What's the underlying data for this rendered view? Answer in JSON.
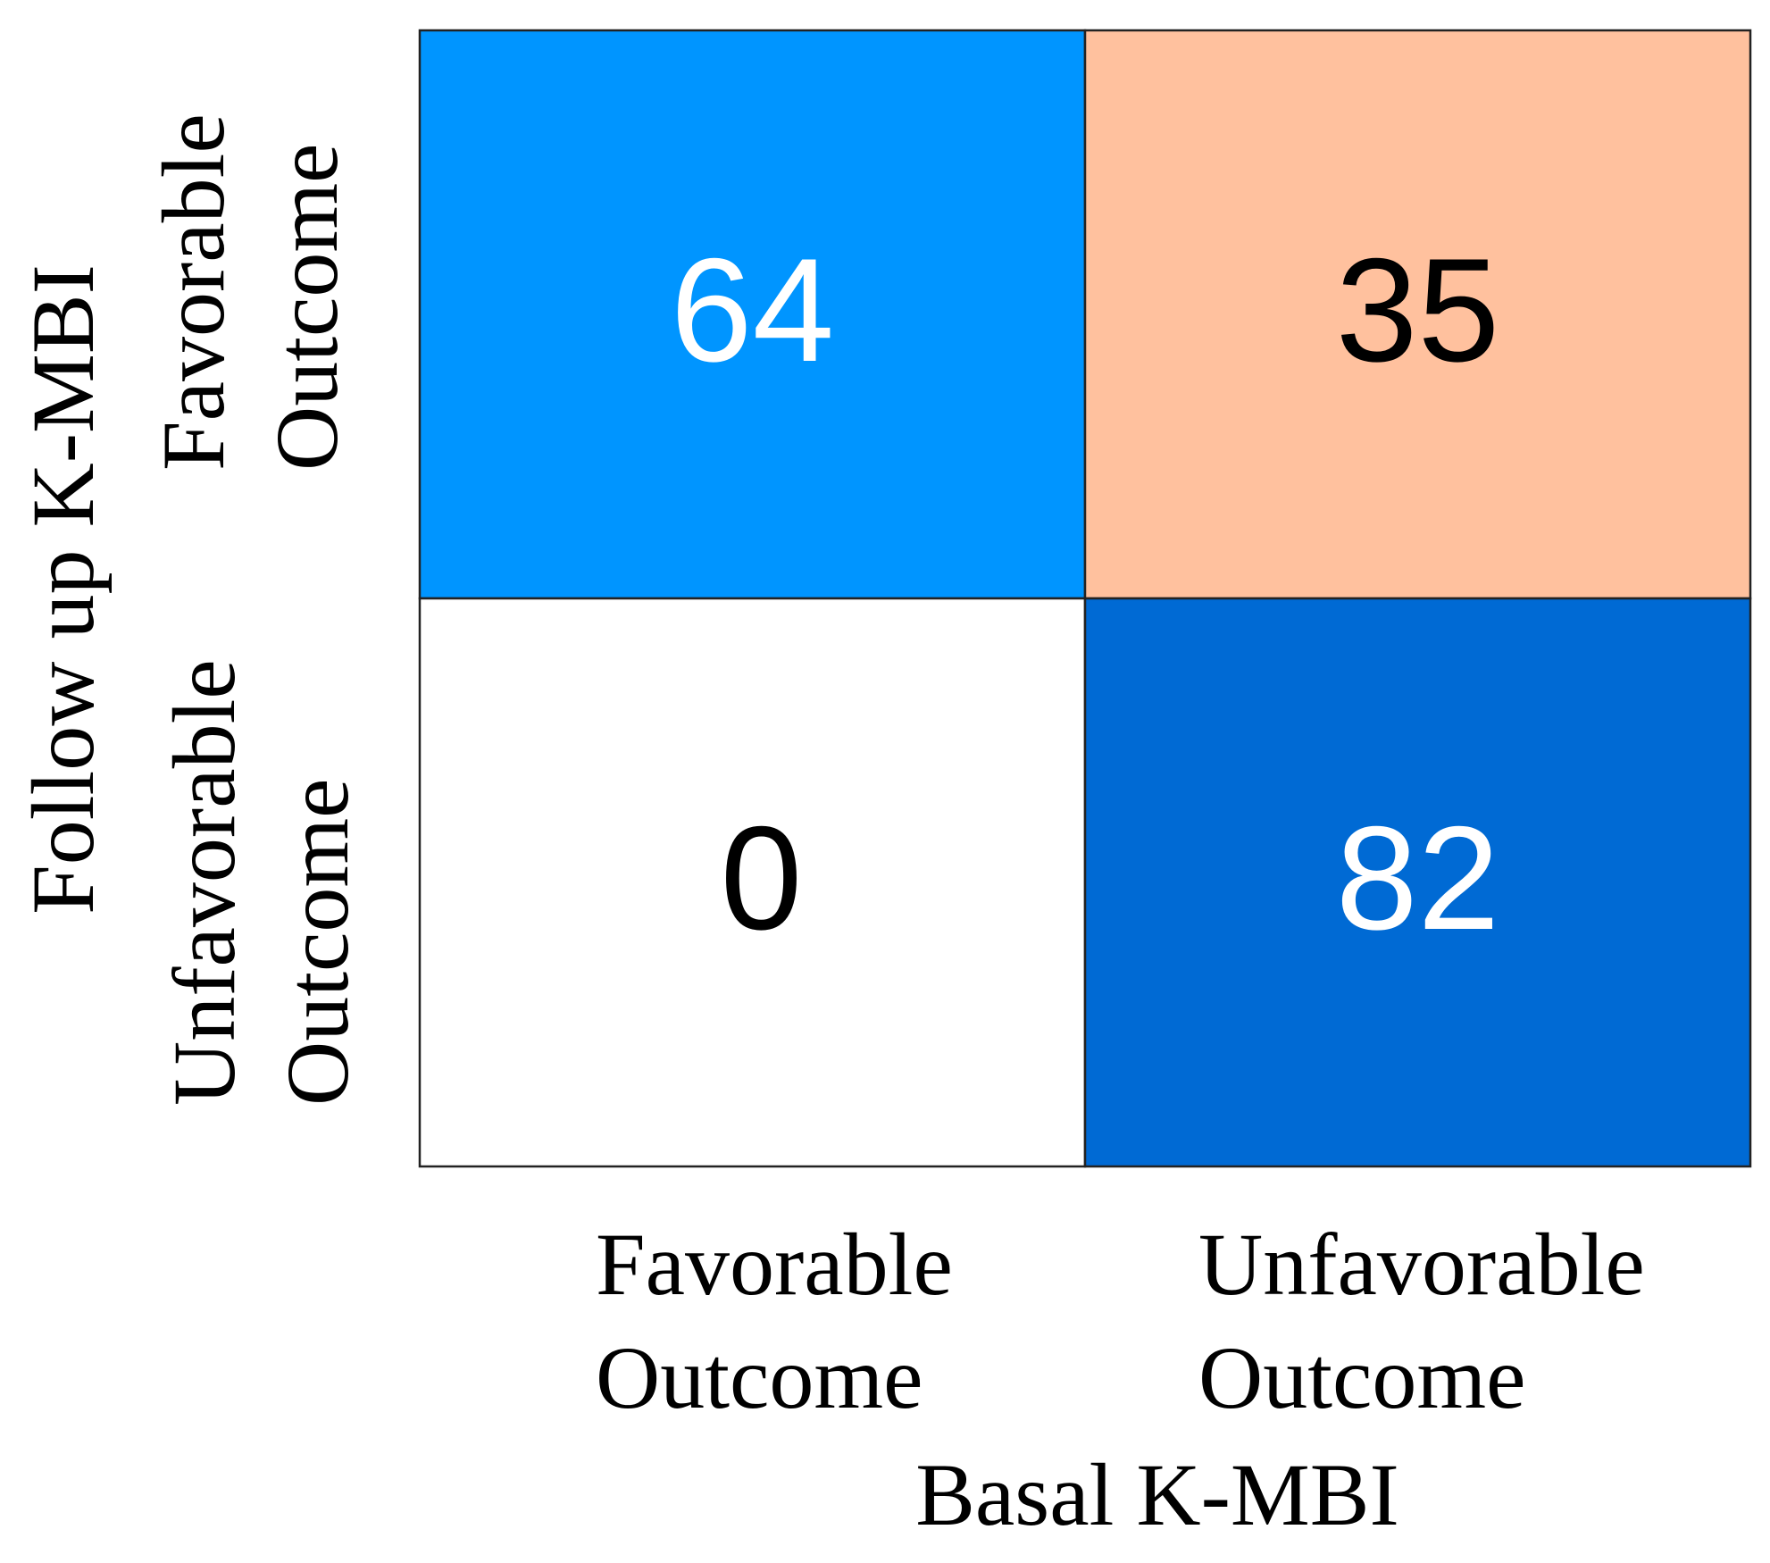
{
  "chart_data": {
    "type": "heatmap",
    "x_label": "Basal K-MBI",
    "y_label": "Follow up K-MBI",
    "x_categories": [
      "Favorable Outcome",
      "Unfavorable Outcome"
    ],
    "y_categories": [
      "Favorable Outcome",
      "Unfavorable Outcome"
    ],
    "values": [
      [
        64,
        35
      ],
      [
        0,
        82
      ]
    ],
    "cell_colors": [
      [
        "#0095ff",
        "#ffc19e"
      ],
      [
        "#ffffff",
        "#006ad4"
      ]
    ],
    "label_colors": [
      [
        "#ffffff",
        "#000000"
      ],
      [
        "#000000",
        "#ffffff"
      ]
    ]
  }
}
